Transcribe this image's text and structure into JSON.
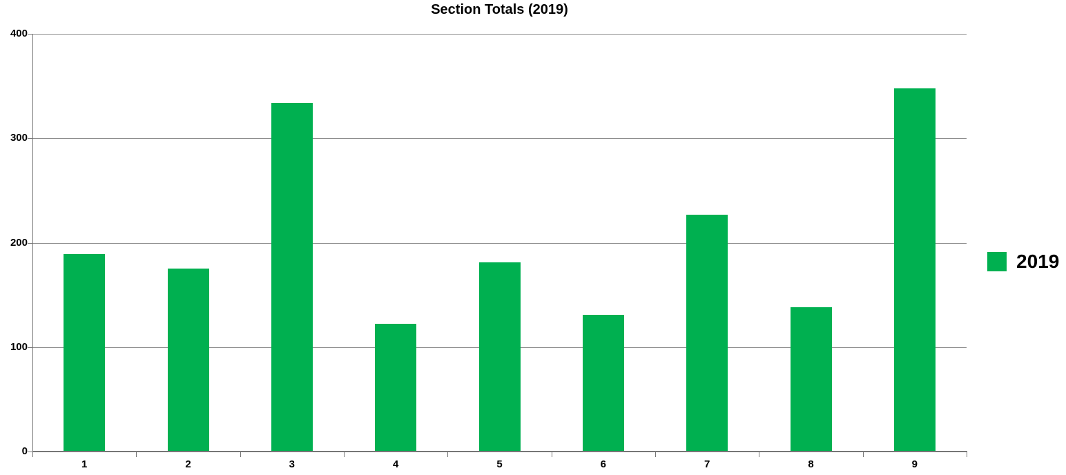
{
  "title": "Section Totals (2019)",
  "chart_data": {
    "type": "bar",
    "title": "Section Totals (2019)",
    "categories": [
      "1",
      "2",
      "3",
      "4",
      "5",
      "6",
      "7",
      "8",
      "9"
    ],
    "series": [
      {
        "name": "2019",
        "color": "#00B050",
        "values": [
          189,
          175,
          334,
          122,
          181,
          131,
          227,
          138,
          348
        ]
      }
    ],
    "xlabel": "",
    "ylabel": "",
    "ylim": [
      0,
      400
    ],
    "yticks": [
      0,
      100,
      200,
      300,
      400
    ],
    "grid": true,
    "legend_position": "right",
    "gridline_color": "#8A8A8A",
    "axis_color": "#767676",
    "text_color": "#000000"
  },
  "legend": {
    "label": "2019"
  }
}
